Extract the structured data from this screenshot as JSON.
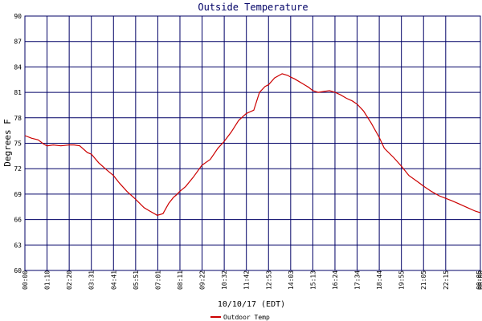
{
  "chart_data": {
    "type": "line",
    "title": "Outside Temperature",
    "xlabel": "10/10/17 (EDT)",
    "ylabel": "Degrees F",
    "ylim": [
      60,
      90
    ],
    "yticks": [
      60,
      63,
      66,
      69,
      72,
      75,
      78,
      81,
      84,
      87,
      90
    ],
    "xticks": [
      "00:00",
      "01:10",
      "02:20",
      "03:31",
      "04:41",
      "05:51",
      "07:01",
      "08:11",
      "09:22",
      "10:32",
      "11:42",
      "12:53",
      "14:03",
      "15:13",
      "16:24",
      "17:34",
      "18:44",
      "19:55",
      "21:05",
      "22:15",
      "00:00"
    ],
    "x_end_label": "00:05",
    "grid": true,
    "legend_position": "bottom-left",
    "series": [
      {
        "name": "Outdoor Temp",
        "color": "#cc0000",
        "x": [
          0.0,
          0.35,
          0.7,
          1.0,
          1.17,
          1.5,
          1.9,
          2.33,
          2.6,
          2.9,
          3.3,
          3.52,
          3.9,
          4.3,
          4.68,
          5.0,
          5.4,
          5.85,
          6.3,
          6.6,
          7.0,
          7.3,
          7.6,
          7.85,
          8.0,
          8.18,
          8.5,
          8.9,
          9.35,
          9.8,
          10.2,
          10.53,
          10.9,
          11.3,
          11.7,
          12.1,
          12.4,
          12.7,
          12.88,
          13.2,
          13.6,
          13.9,
          14.05,
          14.25,
          14.4,
          14.7,
          15.0,
          15.22,
          15.5,
          15.8,
          16.1,
          16.4,
          16.7,
          17.0,
          17.3,
          17.57,
          17.9,
          18.3,
          18.73,
          19.0,
          19.5,
          19.9,
          20.3,
          20.8,
          21.1,
          21.5,
          21.9,
          22.25,
          22.6,
          23.0,
          23.4,
          23.8,
          24.08
        ],
        "y": [
          75.9,
          75.6,
          75.4,
          74.9,
          74.7,
          74.8,
          74.7,
          74.8,
          74.8,
          74.7,
          73.9,
          73.7,
          72.7,
          71.9,
          71.2,
          70.3,
          69.3,
          68.4,
          67.4,
          67.0,
          66.5,
          66.7,
          67.9,
          68.6,
          68.9,
          69.3,
          69.9,
          71.0,
          72.4,
          73.1,
          74.4,
          75.2,
          76.3,
          77.7,
          78.5,
          78.9,
          81.0,
          81.7,
          81.9,
          82.7,
          83.2,
          83.0,
          82.8,
          82.6,
          82.4,
          82.0,
          81.6,
          81.2,
          81.0,
          81.1,
          81.2,
          81.0,
          80.7,
          80.3,
          80.0,
          79.6,
          78.8,
          77.4,
          75.7,
          74.4,
          73.3,
          72.3,
          71.2,
          70.4,
          69.9,
          69.3,
          68.8,
          68.5,
          68.2,
          67.8,
          67.4,
          67.0,
          66.8
        ]
      }
    ]
  }
}
